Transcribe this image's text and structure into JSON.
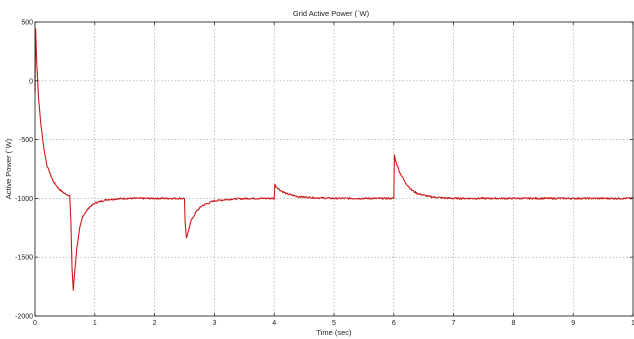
{
  "chart_data": {
    "type": "line",
    "title": "Grid Active Power (`W)",
    "xlabel": "Time (sec)",
    "ylabel": "Active Power (`W)",
    "xlim": [
      0,
      10
    ],
    "ylim": [
      -2000,
      500
    ],
    "grid": true,
    "x_ticks": [
      "0",
      "1",
      "2",
      "3",
      "4",
      "5",
      "6",
      "7",
      "8",
      "9",
      "1"
    ],
    "y_ticks": [
      "500",
      "0",
      "-500",
      "-1000",
      "-1500",
      "-2000"
    ],
    "series": [
      {
        "color": "#cc1a1a",
        "x": [
          0,
          0.01,
          0.03,
          0.06,
          0.1,
          0.15,
          0.2,
          0.3,
          0.4,
          0.5,
          0.58,
          0.6,
          0.62,
          0.64,
          0.66,
          0.7,
          0.75,
          0.8,
          0.9,
          1.0,
          1.2,
          1.5,
          2.0,
          2.5,
          2.51,
          2.53,
          2.55,
          2.6,
          2.7,
          2.8,
          3.0,
          3.3,
          3.6,
          4.0,
          4.01,
          4.03,
          4.1,
          4.2,
          4.4,
          4.7,
          5.0,
          5.5,
          6.0,
          6.01,
          6.03,
          6.1,
          6.2,
          6.3,
          6.4,
          6.6,
          6.8,
          7.0,
          8.0,
          9.0,
          10.0
        ],
        "y": [
          -100,
          440,
          150,
          -150,
          -380,
          -580,
          -720,
          -850,
          -920,
          -960,
          -975,
          -1200,
          -1600,
          -1780,
          -1650,
          -1420,
          -1250,
          -1150,
          -1080,
          -1040,
          -1010,
          -1000,
          -1000,
          -1000,
          -1200,
          -1340,
          -1310,
          -1200,
          -1110,
          -1060,
          -1020,
          -1005,
          -1000,
          -1000,
          -880,
          -900,
          -930,
          -960,
          -985,
          -995,
          -1000,
          -1000,
          -1000,
          -630,
          -680,
          -780,
          -870,
          -930,
          -960,
          -985,
          -995,
          -1000,
          -1000,
          -1000,
          -1000
        ]
      }
    ]
  }
}
